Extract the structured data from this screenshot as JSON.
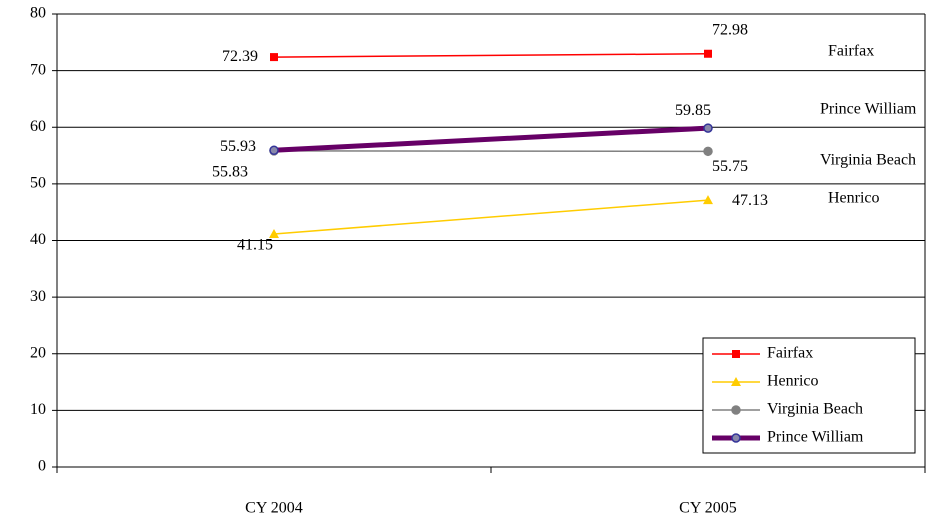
{
  "chart_data": {
    "type": "line",
    "categories": [
      "CY 2004",
      "CY 2005"
    ],
    "series": [
      {
        "name": "Fairfax",
        "color": "#ff0000",
        "marker": "square",
        "values": [
          72.39,
          72.98
        ]
      },
      {
        "name": "Henrico",
        "color": "#ffcc00",
        "marker": "triangle",
        "values": [
          41.15,
          47.13
        ]
      },
      {
        "name": "Virginia Beach",
        "color": "#808080",
        "marker": "circle",
        "values": [
          55.83,
          55.75
        ]
      },
      {
        "name": "Prince William",
        "color": "#660066",
        "marker": "circle",
        "values": [
          55.93,
          59.85
        ]
      }
    ],
    "ylim": [
      0,
      80
    ],
    "yticks": [
      0,
      10,
      20,
      30,
      40,
      50,
      60,
      70,
      80
    ],
    "grid": true,
    "legend": "lower right"
  }
}
